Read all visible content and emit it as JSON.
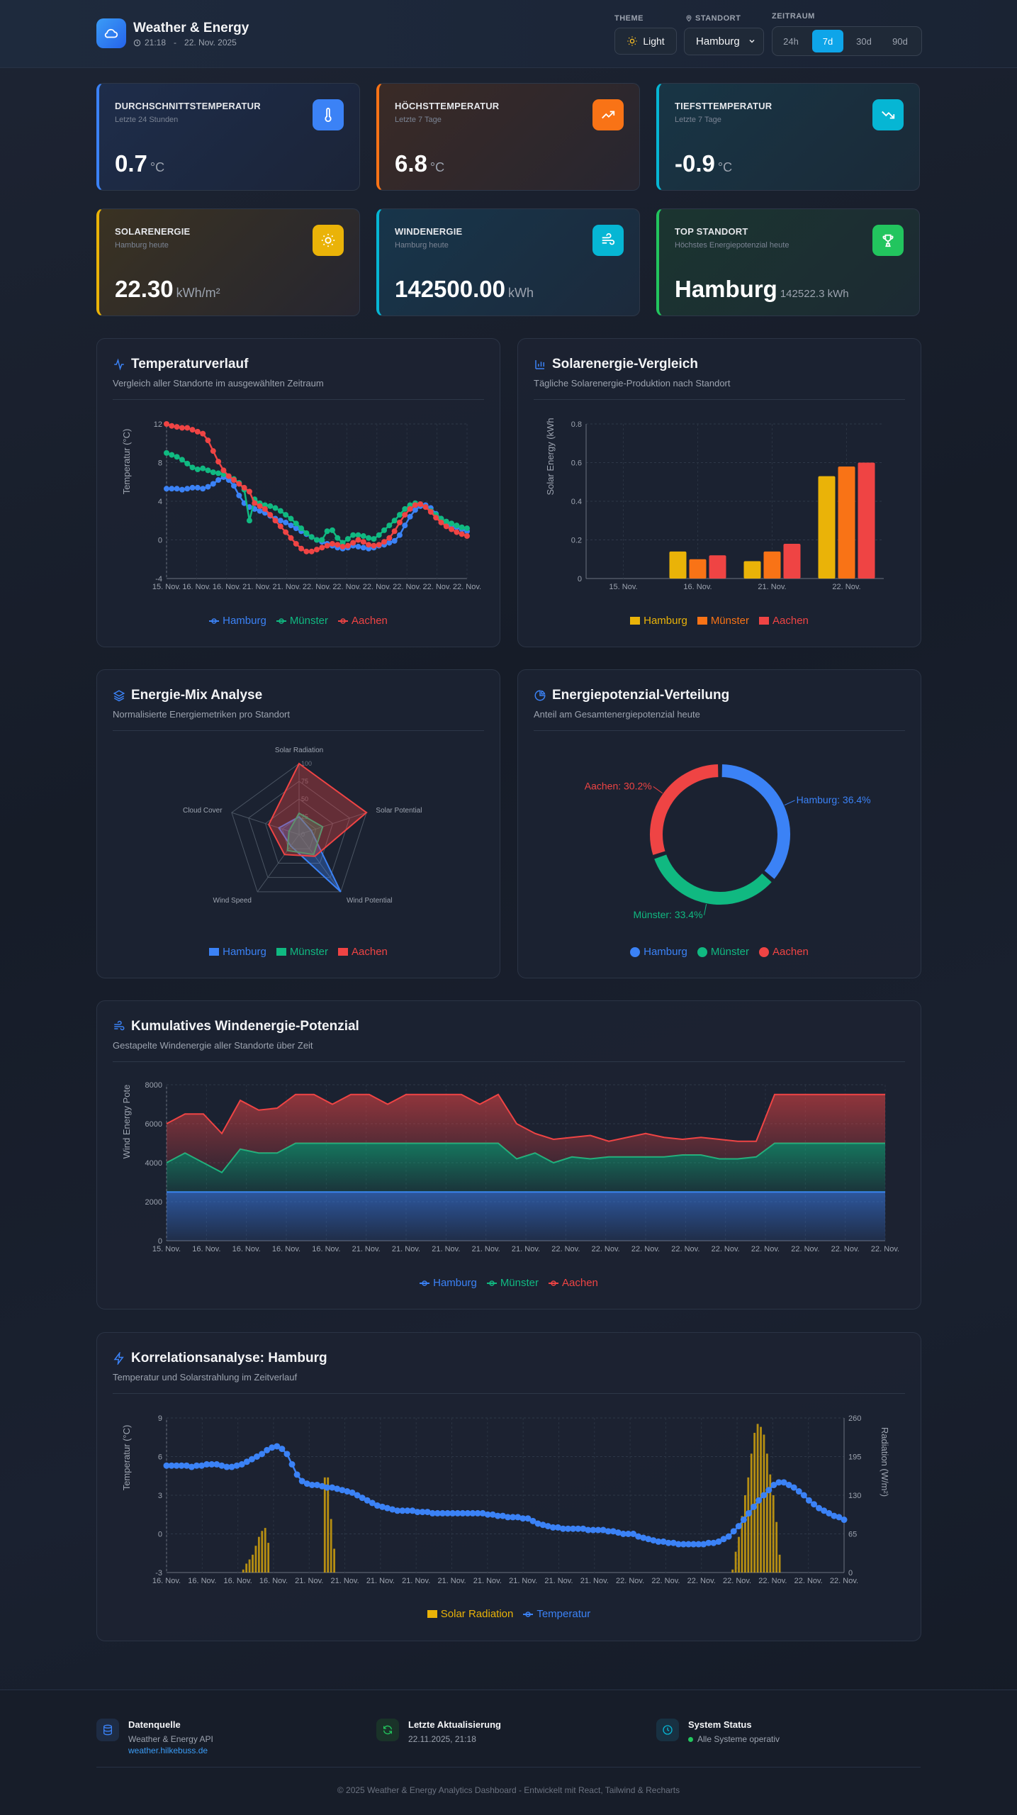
{
  "header": {
    "title": "Weather & Energy",
    "time": "21:18",
    "separator": "-",
    "date": "22. Nov. 2025",
    "theme_label": "THEME",
    "theme_button": "Light",
    "location_label": "STANDORT",
    "location_value": "Hamburg",
    "range_label": "ZEITRAUM",
    "ranges": [
      "24h",
      "7d",
      "30d",
      "90d"
    ],
    "active_range": "7d"
  },
  "stats": [
    {
      "title": "DURCHSCHNITTSTEMPERATUR",
      "subtitle": "Letzte 24 Stunden",
      "value": "0.7",
      "unit": "°C",
      "icon": "thermometer-icon",
      "accent": "#3b82f6"
    },
    {
      "title": "HÖCHSTTEMPERATUR",
      "subtitle": "Letzte 7 Tage",
      "value": "6.8",
      "unit": "°C",
      "icon": "trending-up-icon",
      "accent": "#f97316"
    },
    {
      "title": "TIEFSTTEMPERATUR",
      "subtitle": "Letzte 7 Tage",
      "value": "-0.9",
      "unit": "°C",
      "icon": "trending-down-icon",
      "accent": "#06b6d4"
    },
    {
      "title": "SOLARENERGIE",
      "subtitle": "Hamburg heute",
      "value": "22.30",
      "unit": "kWh/m²",
      "icon": "sun-icon",
      "accent": "#eab308"
    },
    {
      "title": "WINDENERGIE",
      "subtitle": "Hamburg heute",
      "value": "142500.00",
      "unit": "kWh",
      "icon": "wind-icon",
      "accent": "#06b6d4"
    },
    {
      "title": "TOP STANDORT",
      "subtitle": "Höchstes Energiepotenzial heute",
      "value": "Hamburg",
      "unit": "142522.3 kWh",
      "icon": "trophy-icon",
      "accent": "#22c55e"
    }
  ],
  "colors": {
    "hamburg": "#3b82f6",
    "muenster": "#10b981",
    "aachen": "#ef4444",
    "solar": "#eab308",
    "solar_bar2": "#f97316"
  },
  "panels": {
    "temperature": {
      "title": "Temperaturverlauf",
      "subtitle": "Vergleich aller Standorte im ausgewählten Zeitraum"
    },
    "solar": {
      "title": "Solarenergie-Vergleich",
      "subtitle": "Tägliche Solarenergie-Produktion nach Standort"
    },
    "energymix": {
      "title": "Energie-Mix Analyse",
      "subtitle": "Normalisierte Energiemetriken pro Standort"
    },
    "potential": {
      "title": "Energiepotenzial-Verteilung",
      "subtitle": "Anteil am Gesamtenergiepotenzial heute"
    },
    "wind": {
      "title": "Kumulatives Windenergie-Potenzial",
      "subtitle": "Gestapelte Windenergie aller Standorte über Zeit"
    },
    "correlation": {
      "title": "Korrelationsanalyse: Hamburg",
      "subtitle": "Temperatur und Solarstrahlung im Zeitverlauf"
    }
  },
  "chart_data": [
    {
      "id": "temperature",
      "type": "line",
      "ylabel": "Temperatur (°C)",
      "ylim": [
        -4,
        12
      ],
      "yticks": [
        -4,
        0,
        4,
        8,
        12
      ],
      "xticks": [
        "15. Nov.",
        "16. Nov.",
        "16. Nov.",
        "21. Nov.",
        "21. Nov.",
        "22. Nov.",
        "22. Nov.",
        "22. Nov.",
        "22. Nov.",
        "22. Nov.",
        "22. Nov."
      ],
      "legend": "bottom",
      "series": [
        {
          "name": "Hamburg",
          "values": [
            5.3,
            5.3,
            5.3,
            5.2,
            5.3,
            5.4,
            5.4,
            5.3,
            5.5,
            5.8,
            6.2,
            6.5,
            6.2,
            5.6,
            4.6,
            3.8,
            3.4,
            3.2,
            3.0,
            2.8,
            2.5,
            2.2,
            2.0,
            1.8,
            1.5,
            1.2,
            0.9,
            0.6,
            0.3,
            0.0,
            -0.2,
            -0.4,
            -0.6,
            -0.8,
            -0.9,
            -0.8,
            -0.6,
            -0.7,
            -0.8,
            -0.9,
            -0.8,
            -0.6,
            -0.5,
            -0.3,
            -0.1,
            0.5,
            1.5,
            2.4,
            3.1,
            3.5,
            3.6,
            3.3,
            2.7,
            2.2,
            1.8,
            1.5,
            1.3,
            1.1,
            0.9
          ]
        },
        {
          "name": "Münster",
          "values": [
            9.0,
            8.8,
            8.6,
            8.3,
            7.9,
            7.5,
            7.3,
            7.4,
            7.2,
            7.0,
            6.9,
            6.8,
            6.6,
            6.3,
            5.9,
            5.2,
            2.0,
            4.2,
            3.8,
            3.6,
            3.5,
            3.3,
            3.0,
            2.6,
            2.2,
            1.7,
            1.2,
            0.7,
            0.3,
            0.0,
            0.0,
            0.9,
            1.0,
            0.2,
            -0.3,
            0.1,
            0.5,
            0.5,
            0.4,
            0.2,
            0.1,
            0.5,
            1.0,
            1.5,
            2.0,
            2.6,
            3.2,
            3.6,
            3.8,
            3.7,
            3.4,
            3.0,
            2.6,
            2.2,
            1.9,
            1.7,
            1.5,
            1.3,
            1.2
          ]
        },
        {
          "name": "Aachen",
          "values": [
            12.0,
            11.8,
            11.7,
            11.6,
            11.6,
            11.4,
            11.2,
            11.0,
            10.3,
            9.2,
            8.1,
            7.2,
            6.6,
            6.2,
            5.8,
            5.4,
            5.0,
            3.8,
            3.5,
            3.2,
            2.6,
            2.0,
            1.4,
            0.8,
            0.2,
            -0.4,
            -0.9,
            -1.2,
            -1.2,
            -1.0,
            -0.8,
            -0.6,
            -0.4,
            -0.5,
            -0.7,
            -0.6,
            -0.3,
            0.0,
            -0.2,
            -0.5,
            -0.6,
            -0.5,
            -0.2,
            0.2,
            0.9,
            1.8,
            2.6,
            3.2,
            3.6,
            3.7,
            3.4,
            2.9,
            2.3,
            1.8,
            1.4,
            1.1,
            0.8,
            0.6,
            0.4
          ]
        }
      ]
    },
    {
      "id": "solar",
      "type": "bar",
      "ylabel": "Solar Energy (kWh",
      "ylim": [
        0,
        0.8
      ],
      "yticks": [
        0,
        0.2,
        0.4,
        0.6,
        0.8
      ],
      "categories": [
        "15. Nov.",
        "16. Nov.",
        "21. Nov.",
        "22. Nov."
      ],
      "legend": "bottom",
      "series": [
        {
          "name": "Hamburg",
          "values": [
            0,
            0.14,
            0.09,
            0.53
          ]
        },
        {
          "name": "Münster",
          "values": [
            0,
            0.1,
            0.14,
            0.58
          ]
        },
        {
          "name": "Aachen",
          "values": [
            0,
            0.12,
            0.18,
            0.6
          ]
        }
      ]
    },
    {
      "id": "energymix",
      "type": "radar",
      "axes": [
        "Solar Radiation",
        "Solar Potential",
        "Wind Potential",
        "Wind Speed",
        "Cloud Cover"
      ],
      "rticks": [
        0,
        25,
        50,
        75,
        100
      ],
      "legend": "bottom",
      "series": [
        {
          "name": "Hamburg",
          "values": [
            25,
            18,
            100,
            20,
            30
          ]
        },
        {
          "name": "Münster",
          "values": [
            30,
            35,
            35,
            28,
            15
          ]
        },
        {
          "name": "Aachen",
          "values": [
            100,
            100,
            38,
            35,
            45
          ]
        }
      ]
    },
    {
      "id": "potential",
      "type": "pie",
      "legend": "bottom",
      "slices": [
        {
          "name": "Hamburg",
          "value": 36.4,
          "label": "Hamburg: 36.4%"
        },
        {
          "name": "Münster",
          "value": 33.4,
          "label": "Münster: 33.4%"
        },
        {
          "name": "Aachen",
          "value": 30.2,
          "label": "Aachen: 30.2%"
        }
      ]
    },
    {
      "id": "wind",
      "type": "area",
      "stacked": true,
      "ylabel": "Wind Energy Pote",
      "ylim": [
        0,
        8000
      ],
      "yticks": [
        0,
        2000,
        4000,
        6000,
        8000
      ],
      "xticks": [
        "15. Nov.",
        "16. Nov.",
        "16. Nov.",
        "16. Nov.",
        "16. Nov.",
        "21. Nov.",
        "21. Nov.",
        "21. Nov.",
        "21. Nov.",
        "21. Nov.",
        "22. Nov.",
        "22. Nov.",
        "22. Nov.",
        "22. Nov.",
        "22. Nov.",
        "22. Nov.",
        "22. Nov.",
        "22. Nov.",
        "22. Nov."
      ],
      "legend": "bottom",
      "series": [
        {
          "name": "Hamburg",
          "values": [
            2500,
            2500,
            2500,
            2500,
            2500,
            2500,
            2500,
            2500,
            2500,
            2500,
            2500,
            2500,
            2500,
            2500,
            2500,
            2500,
            2500,
            2500,
            2500,
            2500,
            2500,
            2500,
            2500,
            2500,
            2500,
            2500,
            2500,
            2500,
            2500,
            2500,
            2500,
            2500,
            2500,
            2500,
            2500,
            2500,
            2500,
            2500,
            2500,
            2500
          ]
        },
        {
          "name": "Münster",
          "values": [
            1500,
            2000,
            1500,
            1000,
            2200,
            2000,
            2000,
            2500,
            2500,
            2500,
            2500,
            2500,
            2500,
            2500,
            2500,
            2500,
            2500,
            2500,
            2500,
            1700,
            2000,
            1500,
            1800,
            1700,
            1800,
            1800,
            1800,
            1800,
            1900,
            1900,
            1700,
            1700,
            1800,
            2500,
            2500,
            2500,
            2500,
            2500,
            2500,
            2500
          ]
        },
        {
          "name": "Aachen",
          "values": [
            2000,
            2000,
            2500,
            2000,
            2500,
            2200,
            2300,
            2500,
            2500,
            2000,
            2500,
            2500,
            2000,
            2500,
            2500,
            2500,
            2500,
            2000,
            2500,
            1800,
            1000,
            1200,
            1000,
            1200,
            800,
            1000,
            1200,
            1000,
            800,
            900,
            1000,
            900,
            800,
            2500,
            2500,
            2500,
            2500,
            2500,
            2500,
            2500
          ]
        }
      ]
    },
    {
      "id": "correlation",
      "type": "bar+line",
      "ylabel": "Temperatur (°C)",
      "y2label": "Radiation (W/m²)",
      "ylim": [
        -3,
        9
      ],
      "yticks": [
        -3,
        0,
        3,
        6,
        9
      ],
      "y2lim": [
        0,
        260
      ],
      "y2ticks": [
        0,
        65,
        130,
        195,
        260
      ],
      "xticks": [
        "16. Nov.",
        "16. Nov.",
        "16. Nov.",
        "16. Nov.",
        "21. Nov.",
        "21. Nov.",
        "21. Nov.",
        "21. Nov.",
        "21. Nov.",
        "21. Nov.",
        "21. Nov.",
        "21. Nov.",
        "21. Nov.",
        "22. Nov.",
        "22. Nov.",
        "22. Nov.",
        "22. Nov.",
        "22. Nov.",
        "22. Nov.",
        "22. Nov."
      ],
      "legend": "bottom",
      "series": [
        {
          "name": "Solar Radiation",
          "kind": "bar",
          "values": [
            0,
            0,
            0,
            0,
            0,
            0,
            0,
            0,
            0,
            0,
            0,
            0,
            0,
            0,
            0,
            0,
            0,
            0,
            0,
            0,
            0,
            0,
            0,
            0,
            5,
            15,
            22,
            30,
            45,
            60,
            70,
            75,
            50,
            0,
            0,
            0,
            0,
            0,
            0,
            0,
            0,
            0,
            0,
            0,
            0,
            0,
            0,
            0,
            0,
            0,
            160,
            160,
            90,
            40,
            0,
            0,
            0,
            0,
            0,
            0,
            0,
            0,
            0,
            0,
            0,
            0,
            0,
            0,
            0,
            0,
            0,
            0,
            0,
            0,
            0,
            0,
            0,
            0,
            0,
            0,
            0,
            0,
            0,
            0,
            0,
            0,
            0,
            0,
            0,
            0,
            0,
            0,
            0,
            0,
            0,
            0,
            0,
            0,
            0,
            0,
            0,
            0,
            0,
            0,
            0,
            0,
            0,
            0,
            0,
            0,
            0,
            0,
            0,
            0,
            0,
            0,
            0,
            0,
            0,
            0,
            0,
            0,
            0,
            0,
            0,
            0,
            0,
            0,
            0,
            0,
            0,
            0,
            0,
            0,
            0,
            0,
            0,
            0,
            0,
            0,
            0,
            0,
            0,
            0,
            0,
            0,
            0,
            0,
            0,
            0,
            0,
            0,
            0,
            0,
            0,
            0,
            0,
            0,
            0,
            0,
            0,
            0,
            0,
            0,
            0,
            0,
            0,
            0,
            0,
            0,
            0,
            0,
            0,
            0,
            0,
            0,
            0,
            0,
            0,
            0,
            5,
            35,
            60,
            95,
            130,
            160,
            200,
            235,
            250,
            245,
            232,
            200,
            165,
            130,
            85,
            30,
            0,
            0,
            0,
            0,
            0,
            0,
            0,
            0,
            0,
            0,
            0,
            0,
            0,
            0,
            0,
            0,
            0,
            0,
            0,
            0
          ]
        },
        {
          "name": "Temperatur",
          "kind": "line",
          "values": [
            5.3,
            5.3,
            5.3,
            5.3,
            5.3,
            5.2,
            5.3,
            5.3,
            5.4,
            5.4,
            5.4,
            5.3,
            5.2,
            5.2,
            5.3,
            5.4,
            5.6,
            5.8,
            6.0,
            6.2,
            6.5,
            6.7,
            6.8,
            6.6,
            6.2,
            5.4,
            4.6,
            4.1,
            3.9,
            3.8,
            3.8,
            3.7,
            3.6,
            3.6,
            3.5,
            3.4,
            3.3,
            3.2,
            3.0,
            2.8,
            2.6,
            2.4,
            2.2,
            2.1,
            2.0,
            1.9,
            1.8,
            1.8,
            1.8,
            1.8,
            1.7,
            1.7,
            1.7,
            1.6,
            1.6,
            1.6,
            1.6,
            1.6,
            1.6,
            1.6,
            1.6,
            1.6,
            1.6,
            1.6,
            1.5,
            1.5,
            1.4,
            1.4,
            1.3,
            1.3,
            1.3,
            1.2,
            1.2,
            1.0,
            0.8,
            0.7,
            0.6,
            0.5,
            0.5,
            0.4,
            0.4,
            0.4,
            0.4,
            0.4,
            0.3,
            0.3,
            0.3,
            0.3,
            0.2,
            0.2,
            0.1,
            0.0,
            0.0,
            0.0,
            -0.2,
            -0.3,
            -0.4,
            -0.5,
            -0.6,
            -0.6,
            -0.7,
            -0.7,
            -0.8,
            -0.8,
            -0.8,
            -0.8,
            -0.8,
            -0.8,
            -0.7,
            -0.7,
            -0.6,
            -0.4,
            -0.2,
            0.2,
            0.6,
            1.1,
            1.6,
            2.1,
            2.6,
            3.0,
            3.4,
            3.8,
            4.0,
            4.0,
            3.8,
            3.6,
            3.3,
            3.0,
            2.6,
            2.3,
            2.0,
            1.8,
            1.6,
            1.4,
            1.3,
            1.1
          ]
        }
      ]
    }
  ],
  "footer": {
    "source_title": "Datenquelle",
    "source_text": "Weather & Energy API",
    "source_link": "weather.hilkebuss.de",
    "update_title": "Letzte Aktualisierung",
    "update_text": "22.11.2025, 21:18",
    "status_title": "System Status",
    "status_text": "Alle Systeme operativ",
    "copyright": "© 2025 Weather & Energy Analytics Dashboard - Entwickelt mit React, Tailwind & Recharts"
  }
}
